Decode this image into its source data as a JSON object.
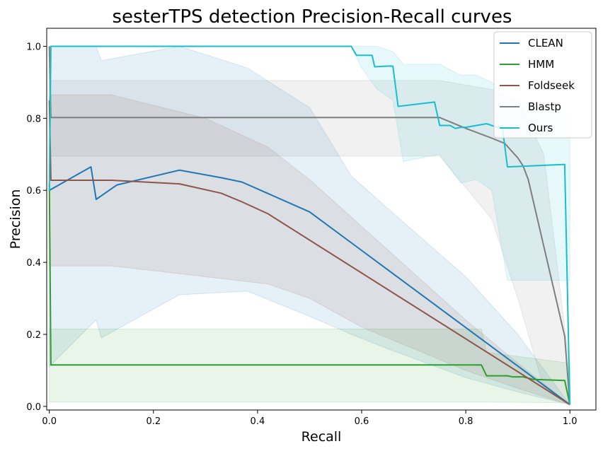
{
  "chart_data": {
    "type": "line",
    "title": "sesterTPS detection Precision-Recall curves",
    "xlabel": "Recall",
    "ylabel": "Precision",
    "xlim": [
      -0.005,
      1.05
    ],
    "ylim": [
      -0.01,
      1.05
    ],
    "xticks": [
      "0.0",
      "0.2",
      "0.4",
      "0.6",
      "0.8",
      "1.0"
    ],
    "yticks": [
      "0.0",
      "0.2",
      "0.4",
      "0.6",
      "0.8",
      "1.0"
    ],
    "legend_position": "top-right",
    "grid": false,
    "series": [
      {
        "name": "CLEAN",
        "color": "#1f77b4",
        "x": [
          0,
          0.08,
          0.09,
          0.12,
          0.13,
          0.25,
          0.33,
          0.37,
          0.5,
          1.0
        ],
        "y": [
          0.6,
          0.665,
          0.575,
          0.605,
          0.615,
          0.656,
          0.635,
          0.623,
          0.54,
          0.005
        ],
        "band": {
          "x": [
            0,
            0.09,
            0.1,
            0.25,
            0.38,
            0.5,
            0.58,
            0.65,
            0.8,
            0.9,
            1.0
          ],
          "upper": [
            1.0,
            1.0,
            0.96,
            1.0,
            0.94,
            0.83,
            0.64,
            0.55,
            0.36,
            0.2,
            0.005
          ],
          "lower": [
            0.11,
            0.24,
            0.19,
            0.31,
            0.32,
            0.25,
            0.2,
            0.16,
            0.08,
            0.04,
            0.005
          ]
        }
      },
      {
        "name": "HMM",
        "color": "#2ca02c",
        "x": [
          0,
          0.003,
          0.83,
          0.84,
          0.88,
          0.89,
          0.91,
          0.93,
          0.99,
          1.0
        ],
        "y": [
          0.62,
          0.115,
          0.115,
          0.085,
          0.085,
          0.082,
          0.082,
          0.075,
          0.072,
          0.005
        ],
        "band": {
          "x": [
            0,
            0.83,
            0.84,
            1.0
          ],
          "upper": [
            0.215,
            0.215,
            0.15,
            0.12
          ],
          "lower": [
            0.012,
            0.012,
            0.012,
            0.01
          ]
        }
      },
      {
        "name": "Foldseek",
        "color": "#8c564b",
        "x": [
          0,
          0.003,
          0.12,
          0.25,
          0.33,
          0.37,
          0.42,
          1.0
        ],
        "y": [
          0.85,
          0.628,
          0.628,
          0.618,
          0.592,
          0.568,
          0.535,
          0.005
        ],
        "band": {
          "x": [
            0,
            0.12,
            0.3,
            0.42,
            0.5,
            0.6,
            0.8,
            0.9,
            1.0
          ],
          "upper": [
            0.865,
            0.865,
            0.8,
            0.72,
            0.63,
            0.5,
            0.24,
            0.12,
            0.005
          ],
          "lower": [
            0.39,
            0.39,
            0.36,
            0.34,
            0.3,
            0.22,
            0.1,
            0.05,
            0.005
          ]
        }
      },
      {
        "name": "Blastp",
        "color": "#7f7f7f",
        "x": [
          0,
          0.003,
          0.75,
          0.8,
          0.85,
          0.875,
          0.9,
          0.91,
          0.92,
          0.99,
          1.0
        ],
        "y": [
          1.0,
          0.802,
          0.802,
          0.772,
          0.745,
          0.73,
          0.69,
          0.668,
          0.63,
          0.195,
          0.005
        ],
        "band": {
          "x": [
            0,
            0.75,
            0.85,
            0.9,
            0.95,
            1.0
          ],
          "upper": [
            0.905,
            0.905,
            0.88,
            0.85,
            0.7,
            0.1
          ],
          "lower": [
            0.695,
            0.695,
            0.52,
            0.3,
            0.05,
            0.005
          ]
        }
      },
      {
        "name": "Ours",
        "color": "#17becf",
        "x": [
          0,
          0.003,
          0.58,
          0.59,
          0.62,
          0.625,
          0.65,
          0.66,
          0.67,
          0.74,
          0.75,
          0.77,
          0.78,
          0.79,
          0.8,
          0.84,
          0.86,
          0.87,
          0.88,
          0.99,
          1.0
        ],
        "y": [
          0.6,
          1.0,
          1.0,
          0.975,
          0.975,
          0.943,
          0.945,
          0.945,
          0.833,
          0.845,
          0.78,
          0.78,
          0.772,
          0.775,
          0.775,
          0.785,
          0.775,
          0.778,
          0.665,
          0.672,
          0.005
        ],
        "band": {
          "x": [
            0.58,
            0.6,
            0.63,
            0.66,
            0.68,
            0.75,
            0.79,
            0.82,
            0.85,
            0.88,
            0.99,
            1.0
          ],
          "upper": [
            1.0,
            1.0,
            1.0,
            0.985,
            0.95,
            0.95,
            0.92,
            0.92,
            0.9,
            0.85,
            0.82,
            0.8
          ],
          "lower": [
            1.0,
            0.94,
            0.88,
            0.85,
            0.68,
            0.7,
            0.62,
            0.63,
            0.6,
            0.35,
            0.35,
            0.35
          ]
        }
      }
    ]
  }
}
